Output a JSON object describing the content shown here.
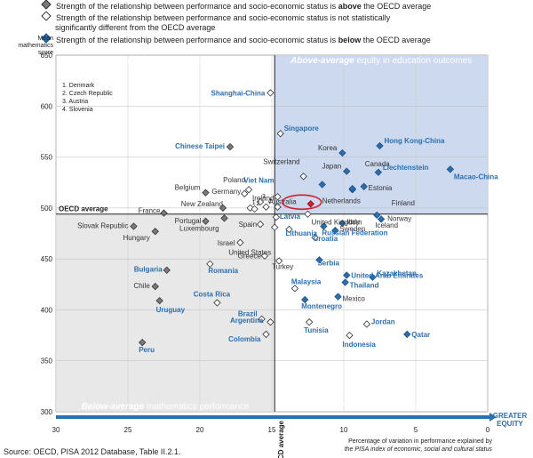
{
  "legend": [
    {
      "marker": "gray",
      "text_a": "Strength of the relationship between performance and socio-economic status is ",
      "bold": "above",
      "text_b": " the OECD average"
    },
    {
      "marker": "white",
      "text_a": "Strength of the relationship between performance and socio-economic status is not statistically",
      "line2": "significantly different from the OECD average"
    },
    {
      "marker": "blue",
      "text_a": "Strength of the relationship between performance and socio-economic status is ",
      "bold": "below",
      "text_b": " the OECD average"
    }
  ],
  "colors": {
    "gray": "#7a7a7a",
    "blue": "#2a6fb0",
    "blue_label": "#2a6fb0",
    "dark": "#333333",
    "red": "#d01f2f",
    "panel_dark": "#5a5a5a",
    "panel_blue": "#3a7abf",
    "bg_gray": "#e8e8e8",
    "bg_blue": "#cdd9ee"
  },
  "quadrants": {
    "tl": {
      "line1_bold": "Above-average",
      "line1": " mathematics performance",
      "line2_bold": "Below-average",
      "line2": " equity in education outcomes"
    },
    "tr": {
      "line1_bold": "Above-average",
      "line1": " mathematics performance",
      "line2_bold": "Above-average",
      "line2": " equity in education outcomes"
    },
    "bl": {
      "line1_bold": "Below-average",
      "line1": " mathematics performance",
      "line2_bold": "Below-average",
      "line2": " equity in education outcomes"
    },
    "br": {
      "line1_bold": "Below-average",
      "line1": " mathematics performance",
      "line2_bold": "Above-average",
      "line2": " equity in education outcomes"
    }
  },
  "numbered_key": [
    "1. Denmark",
    "2. Czech Republic",
    "3. Austria",
    "4. Slovenia"
  ],
  "source": "Source: OECD, PISA 2012 Database, Table II.2.1.",
  "chart_data": {
    "type": "scatter",
    "ylabel_lines": [
      "Mean",
      "mathematics",
      "score"
    ],
    "xlabel_lines": [
      "Percentage of variation in performance explained by",
      "the PISA index of economic, social and cultural status"
    ],
    "greater_equity": [
      "GREATER",
      "EQUITY"
    ],
    "oecd_avg_x_label": "OECD average",
    "oecd_avg_y_label": "OECD average",
    "x_axis_reversed": true,
    "xlim": [
      30,
      0
    ],
    "ylim": [
      300,
      650
    ],
    "xticks": [
      30,
      25,
      20,
      15,
      10,
      5,
      0
    ],
    "yticks": [
      300,
      350,
      400,
      450,
      500,
      550,
      600,
      650
    ],
    "oecd_avg": {
      "x": 14.8,
      "y": 494
    },
    "highlight": "Australia",
    "points": [
      {
        "name": "Shanghai-China",
        "x": 15.1,
        "y": 613,
        "type": "white",
        "label_color": "blue"
      },
      {
        "name": "Singapore",
        "x": 14.4,
        "y": 573,
        "type": "white",
        "label_color": "blue"
      },
      {
        "name": "Chinese Taipei",
        "x": 17.9,
        "y": 560,
        "type": "gray",
        "label_color": "blue"
      },
      {
        "name": "Viet Nam",
        "x": 14.6,
        "y": 511,
        "type": "white",
        "label_color": "blue"
      },
      {
        "name": "Canada",
        "x": 9.4,
        "y": 518,
        "type": "blue",
        "label_color": "dark"
      },
      {
        "name": "Hong Kong-China",
        "x": 7.5,
        "y": 561,
        "type": "blue",
        "label_color": "blue"
      },
      {
        "name": "Korea",
        "x": 10.1,
        "y": 554,
        "type": "blue",
        "label_color": "dark"
      },
      {
        "name": "Japan",
        "x": 9.8,
        "y": 536,
        "type": "blue",
        "label_color": "dark"
      },
      {
        "name": "Liechtenstein",
        "x": 7.6,
        "y": 535,
        "type": "blue",
        "label_color": "blue"
      },
      {
        "name": "Macao-China",
        "x": 2.6,
        "y": 538,
        "type": "blue",
        "label_color": "blue"
      },
      {
        "name": "Switzerland",
        "x": 12.8,
        "y": 531,
        "type": "white",
        "label_color": "dark"
      },
      {
        "name": "Estonia",
        "x": 8.6,
        "y": 521,
        "type": "blue",
        "label_color": "dark"
      },
      {
        "name": "Netherlands",
        "x": 11.5,
        "y": 523,
        "type": "blue",
        "label_color": "dark"
      },
      {
        "name": "Finland",
        "x": 9.4,
        "y": 519,
        "type": "blue",
        "label_color": "dark"
      },
      {
        "name": "Ireland",
        "x": 14.6,
        "y": 501,
        "type": "white",
        "label_color": "dark"
      },
      {
        "name": "Australia",
        "x": 12.3,
        "y": 504,
        "type": "red",
        "label_color": "dark"
      },
      {
        "name": "Poland",
        "x": 16.6,
        "y": 518,
        "type": "white",
        "label_color": "dark"
      },
      {
        "name": "Belgium",
        "x": 19.6,
        "y": 515,
        "type": "gray",
        "label_color": "dark"
      },
      {
        "name": "Germany",
        "x": 16.9,
        "y": 514,
        "type": "white",
        "label_color": "dark"
      },
      {
        "name": "Denmark",
        "x": 16.5,
        "y": 500,
        "type": "white",
        "label_color": "dark"
      },
      {
        "name": "Czech Republic",
        "x": 16.2,
        "y": 499,
        "type": "white",
        "label_color": "dark"
      },
      {
        "name": "Austria",
        "x": 15.8,
        "y": 506,
        "type": "white",
        "label_color": "dark"
      },
      {
        "name": "Slovenia",
        "x": 15.4,
        "y": 501,
        "type": "white",
        "label_color": "dark"
      },
      {
        "name": "New Zealand",
        "x": 18.4,
        "y": 500,
        "type": "gray",
        "label_color": "dark"
      },
      {
        "name": "France",
        "x": 22.5,
        "y": 495,
        "type": "gray",
        "label_color": "dark"
      },
      {
        "name": "Latvia",
        "x": 14.7,
        "y": 491,
        "type": "white",
        "label_color": "blue"
      },
      {
        "name": "Italy",
        "x": 10.1,
        "y": 485,
        "type": "blue",
        "label_color": "dark"
      },
      {
        "name": "Norway",
        "x": 7.4,
        "y": 489,
        "type": "blue",
        "label_color": "dark"
      },
      {
        "name": "Iceland",
        "x": 7.7,
        "y": 493,
        "type": "blue",
        "label_color": "dark"
      },
      {
        "name": "Sweden",
        "x": 10.6,
        "y": 478,
        "type": "blue",
        "label_color": "dark"
      },
      {
        "name": "Lithuania",
        "x": 13.8,
        "y": 479,
        "type": "white",
        "label_color": "blue"
      },
      {
        "name": "Russian Federation",
        "x": 11.4,
        "y": 482,
        "type": "blue",
        "label_color": "blue"
      },
      {
        "name": "Portugal",
        "x": 19.6,
        "y": 487,
        "type": "gray",
        "label_color": "dark"
      },
      {
        "name": "Spain",
        "x": 15.8,
        "y": 484,
        "type": "white",
        "label_color": "dark"
      },
      {
        "name": "Slovak Republic",
        "x": 24.6,
        "y": 482,
        "type": "gray",
        "label_color": "dark"
      },
      {
        "name": "Hungary",
        "x": 23.1,
        "y": 477,
        "type": "gray",
        "label_color": "dark"
      },
      {
        "name": "Luxembourg",
        "x": 18.3,
        "y": 490,
        "type": "gray",
        "label_color": "dark"
      },
      {
        "name": "Israel",
        "x": 17.2,
        "y": 466,
        "type": "white",
        "label_color": "dark"
      },
      {
        "name": "United States",
        "x": 14.8,
        "y": 481,
        "type": "white",
        "label_color": "dark"
      },
      {
        "name": "United Kingdom",
        "x": 12.5,
        "y": 494,
        "type": "white",
        "label_color": "dark"
      },
      {
        "name": "Croatia",
        "x": 12.0,
        "y": 471,
        "type": "white",
        "label_color": "blue"
      },
      {
        "name": "Greece",
        "x": 15.5,
        "y": 453,
        "type": "white",
        "label_color": "dark"
      },
      {
        "name": "Serbia",
        "x": 11.7,
        "y": 449,
        "type": "blue",
        "label_color": "blue"
      },
      {
        "name": "Turkey",
        "x": 14.5,
        "y": 448,
        "type": "white",
        "label_color": "dark"
      },
      {
        "name": "Bulgaria",
        "x": 22.3,
        "y": 439,
        "type": "gray",
        "label_color": "blue"
      },
      {
        "name": "Romania",
        "x": 19.3,
        "y": 445,
        "type": "white",
        "label_color": "blue"
      },
      {
        "name": "Kazakhstan",
        "x": 8.0,
        "y": 432,
        "type": "blue",
        "label_color": "blue"
      },
      {
        "name": "United Arab Emirates",
        "x": 9.8,
        "y": 434,
        "type": "blue",
        "label_color": "blue"
      },
      {
        "name": "Chile",
        "x": 23.1,
        "y": 423,
        "type": "gray",
        "label_color": "dark"
      },
      {
        "name": "Malaysia",
        "x": 13.4,
        "y": 421,
        "type": "white",
        "label_color": "blue"
      },
      {
        "name": "Thailand",
        "x": 9.9,
        "y": 427,
        "type": "blue",
        "label_color": "blue"
      },
      {
        "name": "Uruguay",
        "x": 22.8,
        "y": 409,
        "type": "gray",
        "label_color": "blue"
      },
      {
        "name": "Costa Rica",
        "x": 18.8,
        "y": 407,
        "type": "white",
        "label_color": "blue"
      },
      {
        "name": "Mexico",
        "x": 10.4,
        "y": 413,
        "type": "blue",
        "label_color": "dark"
      },
      {
        "name": "Montenegro",
        "x": 12.7,
        "y": 410,
        "type": "blue",
        "label_color": "blue"
      },
      {
        "name": "Brazil",
        "x": 15.7,
        "y": 391,
        "type": "white",
        "label_color": "blue"
      },
      {
        "name": "Tunisia",
        "x": 12.4,
        "y": 388,
        "type": "white",
        "label_color": "blue"
      },
      {
        "name": "Jordan",
        "x": 8.4,
        "y": 386,
        "type": "white",
        "label_color": "blue"
      },
      {
        "name": "Argentina",
        "x": 15.1,
        "y": 388,
        "type": "white",
        "label_color": "blue"
      },
      {
        "name": "Colombia",
        "x": 15.4,
        "y": 376,
        "type": "white",
        "label_color": "blue"
      },
      {
        "name": "Indonesia",
        "x": 9.6,
        "y": 375,
        "type": "white",
        "label_color": "blue"
      },
      {
        "name": "Qatar",
        "x": 5.6,
        "y": 376,
        "type": "blue",
        "label_color": "blue"
      },
      {
        "name": "Peru",
        "x": 24.0,
        "y": 368,
        "type": "gray",
        "label_color": "blue"
      }
    ]
  }
}
